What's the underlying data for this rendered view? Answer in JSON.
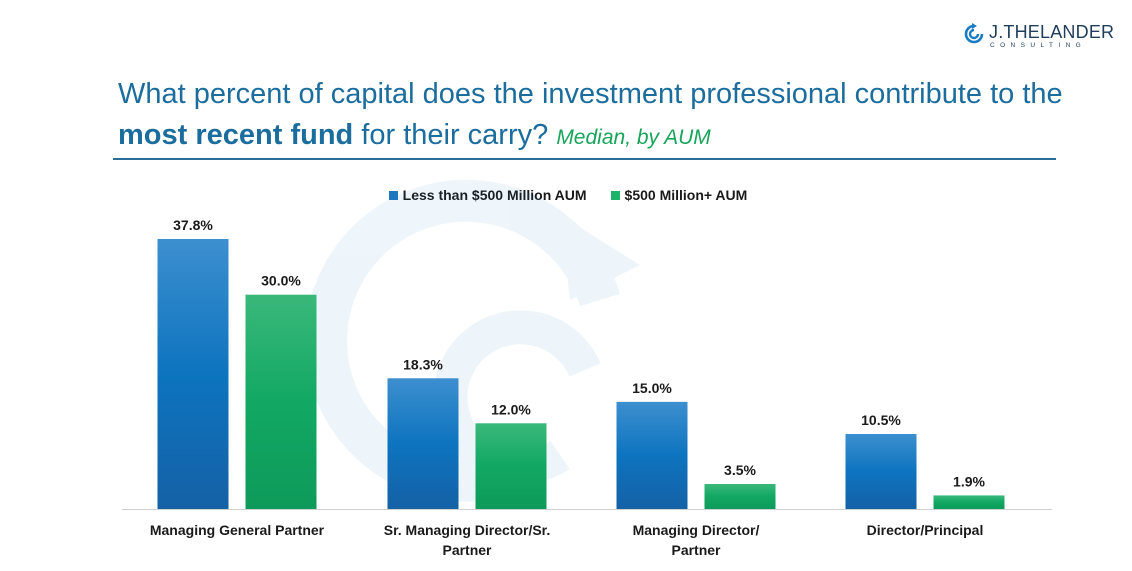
{
  "logo": {
    "name": "J.THELANDER",
    "sub": "CONSULTING"
  },
  "colors": {
    "series_a": "#1f77c0",
    "series_b": "#1fb26a",
    "title": "#1b6d9e",
    "subtitle": "#17a55a"
  },
  "chart_data": {
    "type": "bar",
    "title_parts": [
      "What percent of capital does the investment professional contribute to the ",
      "most recent fund",
      " for their carry? "
    ],
    "subtitle": "Median, by AUM",
    "categories": [
      "Managing General Partner",
      "Sr. Managing Director/Sr. Partner",
      "Managing Director/ Partner",
      "Director/Principal"
    ],
    "category_lines": [
      [
        "Managing General Partner"
      ],
      [
        "Sr. Managing Director/Sr.",
        "Partner"
      ],
      [
        "Managing Director/",
        "Partner"
      ],
      [
        "Director/Principal"
      ]
    ],
    "series": [
      {
        "name": "Less than $500 Million AUM",
        "values": [
          37.8,
          18.3,
          15.0,
          10.5
        ],
        "labels": [
          "37.8%",
          "18.3%",
          "15.0%",
          "10.5%"
        ]
      },
      {
        "name": "$500 Million+ AUM",
        "values": [
          30.0,
          12.0,
          3.5,
          1.9
        ],
        "labels": [
          "30.0%",
          "12.0%",
          "3.5%",
          "1.9%"
        ]
      }
    ],
    "ylim": [
      0,
      37.8
    ],
    "legend": "top-center",
    "grid": false,
    "xlabel": "",
    "ylabel": ""
  }
}
